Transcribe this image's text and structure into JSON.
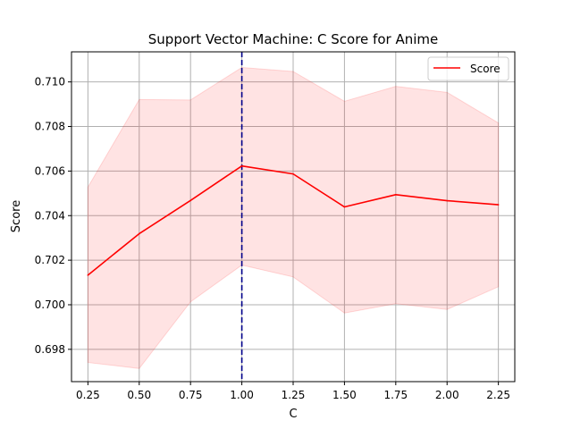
{
  "chart_data": {
    "type": "line",
    "title": "Support Vector Machine: C Score for Anime",
    "xlabel": "C",
    "ylabel": "Score",
    "xlim": [
      0.17,
      2.33
    ],
    "ylim": [
      0.69655,
      0.71135
    ],
    "x_ticks": [
      "0.25",
      "0.50",
      "0.75",
      "1.00",
      "1.25",
      "1.50",
      "1.75",
      "2.00",
      "2.25"
    ],
    "y_ticks": [
      "0.698",
      "0.700",
      "0.702",
      "0.704",
      "0.706",
      "0.708",
      "0.710"
    ],
    "grid": true,
    "legend": {
      "placement": "top-right",
      "entries": [
        "Score"
      ]
    },
    "series": [
      {
        "name": "Score",
        "color": "#ff0000",
        "x": [
          0.25,
          0.5,
          0.75,
          1.0,
          1.25,
          1.5,
          1.75,
          2.0,
          2.25
        ],
        "values": [
          0.70133,
          0.70319,
          0.70468,
          0.70623,
          0.70587,
          0.70439,
          0.70494,
          0.70467,
          0.70449
        ],
        "upper": [
          0.70528,
          0.70921,
          0.70919,
          0.71065,
          0.71047,
          0.70913,
          0.7098,
          0.70953,
          0.70816
        ],
        "lower": [
          0.69741,
          0.69714,
          0.70013,
          0.70178,
          0.70125,
          0.69963,
          0.70005,
          0.69979,
          0.70081
        ]
      }
    ],
    "band_color": "#ff0000",
    "vline": {
      "x": 1.0,
      "color": "#00008b",
      "style": "dashed"
    }
  }
}
